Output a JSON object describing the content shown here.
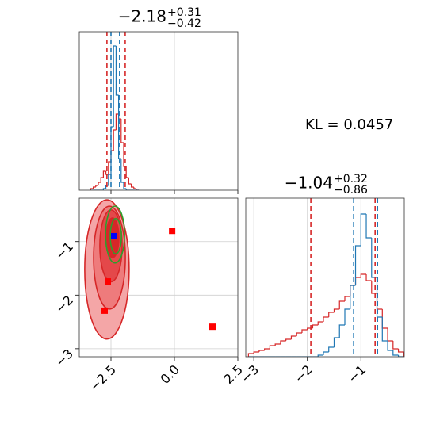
{
  "annotations": [
    "KL = 0.0457"
  ],
  "chart_data": [
    {
      "type": "histogram",
      "title": {
        "value": "−2.18",
        "upper": "+0.31",
        "lower": "−0.42"
      },
      "bins": [
        -3.3,
        -3.2,
        -3.1,
        -3.0,
        -2.9,
        -2.8,
        -2.7,
        -2.6,
        -2.5,
        -2.4,
        -2.3,
        -2.2,
        -2.1,
        -2.0,
        -1.9,
        -1.8,
        -1.7,
        -1.6,
        -1.5,
        -1.4
      ],
      "series": [
        {
          "color": "#d62728",
          "values": [
            1,
            2,
            3,
            5,
            8,
            12,
            10,
            18,
            25,
            38,
            48,
            45,
            30,
            15,
            8,
            4,
            2,
            1,
            0
          ]
        },
        {
          "color": "#1f77b4",
          "values": [
            0,
            0,
            0,
            0,
            0,
            1,
            3,
            10,
            40,
            91,
            60,
            20,
            5,
            1,
            0,
            0,
            0,
            0,
            0
          ]
        }
      ],
      "quantiles": [
        {
          "color": "#d62728",
          "values": [
            -2.66,
            -1.94
          ]
        },
        {
          "color": "#1f77b4",
          "values": [
            -2.5,
            -2.16
          ]
        }
      ],
      "xlim": [
        -3.75,
        2.5
      ],
      "ylim": [
        0,
        100
      ],
      "xticks": [
        -2.5,
        0,
        2.5
      ],
      "xtick_labels": false,
      "grid": true
    },
    {
      "type": "contour",
      "xlim": [
        -3.75,
        2.5
      ],
      "ylim": [
        -3.15,
        -0.19
      ],
      "xticks": [
        {
          "value": -2.5,
          "label": "−2.5"
        },
        {
          "value": 0,
          "label": "0.0"
        },
        2.5
      ],
      "yticks": [
        {
          "value": -1,
          "label": "−1"
        },
        {
          "value": -2,
          "label": "−2"
        },
        {
          "value": -3,
          "label": "−3"
        }
      ],
      "grid": true,
      "contours": [
        {
          "color": "#d62728",
          "fill": "#f4a6a7",
          "cx": -2.66,
          "cy": -1.52,
          "rx": 0.875,
          "ry": 1.3
        },
        {
          "color": "#d62728",
          "fill": "#ee7b7c",
          "cx": -2.56,
          "cy": -1.3,
          "rx": 0.625,
          "ry": 0.96
        },
        {
          "color": "#d62728",
          "fill": "#e4484a",
          "cx": -2.5,
          "cy": -1.08,
          "rx": 0.44,
          "ry": 0.67
        },
        {
          "color": "#d62728",
          "fill": "#d62728",
          "cx": -2.44,
          "cy": -0.93,
          "rx": 0.25,
          "ry": 0.37
        },
        {
          "color": "#2ca02c",
          "fill": "none",
          "cx": -2.34,
          "cy": -0.87,
          "rx": 0.375,
          "ry": 0.53
        },
        {
          "color": "#2ca02c",
          "fill": "none",
          "cx": -2.31,
          "cy": -0.9,
          "rx": 0.22,
          "ry": 0.33
        }
      ],
      "points": [
        {
          "color": "#ff0000",
          "x": [
            -2.625,
            -2.75,
            -0.09,
            1.5
          ],
          "y": [
            -1.745,
            -2.29,
            -0.8,
            -2.59
          ]
        },
        {
          "color": "#0000ff",
          "x": [
            -2.375
          ],
          "y": [
            -0.9
          ]
        }
      ]
    },
    {
      "type": "histogram",
      "title": {
        "value": "−1.04",
        "upper": "+0.32",
        "lower": "−0.86"
      },
      "bins": [
        -3.1,
        -3.0,
        -2.9,
        -2.8,
        -2.7,
        -2.6,
        -2.5,
        -2.4,
        -2.3,
        -2.2,
        -2.1,
        -2.0,
        -1.9,
        -1.8,
        -1.7,
        -1.6,
        -1.5,
        -1.4,
        -1.3,
        -1.2,
        -1.1,
        -1.0,
        -0.9,
        -0.8,
        -0.7,
        -0.6,
        -0.5,
        -0.4,
        -0.3,
        -0.2
      ],
      "series": [
        {
          "color": "#d62728",
          "values": [
            2,
            3,
            4,
            5,
            7,
            8,
            10,
            11,
            13,
            15,
            17,
            18,
            20,
            22,
            25,
            28,
            30,
            35,
            38,
            45,
            50,
            52,
            48,
            40,
            30,
            18,
            10,
            5,
            3
          ]
        },
        {
          "color": "#1f77b4",
          "values": [
            0,
            0,
            0,
            0,
            0,
            0,
            0,
            0,
            0,
            0,
            0,
            0,
            0,
            1,
            3,
            6,
            12,
            20,
            30,
            45,
            70,
            90,
            75,
            50,
            25,
            10,
            4,
            1,
            0
          ]
        }
      ],
      "quantiles": [
        {
          "color": "#d62728",
          "values": [
            -1.935,
            -0.735
          ]
        },
        {
          "color": "#1f77b4",
          "values": [
            -1.135,
            -0.69
          ]
        }
      ],
      "xlim": [
        -3.15,
        -0.19
      ],
      "ylim": [
        0,
        100
      ],
      "xticks": [
        {
          "value": -3,
          "label": "−3"
        },
        {
          "value": -2,
          "label": "−2"
        },
        {
          "value": -1,
          "label": "−1"
        }
      ],
      "grid": true
    }
  ]
}
